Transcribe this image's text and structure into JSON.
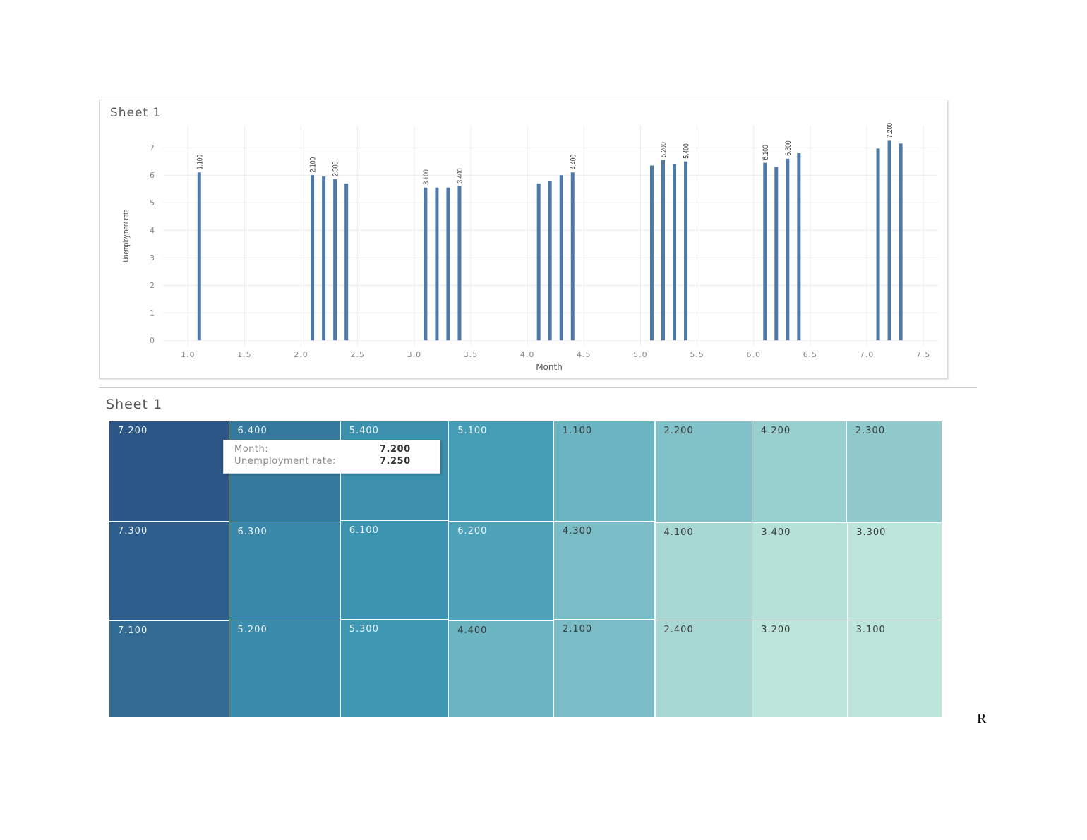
{
  "bar_chart": {
    "sheet_title": "Sheet 1"
  },
  "treemap": {
    "sheet_title": "Sheet 1",
    "tooltip": {
      "month_label": "Month:",
      "month_value": "7.200",
      "rate_label": "Unemployment rate:",
      "rate_value": "7.250"
    }
  },
  "stray_text": "R",
  "colors": {
    "bar": "#4e79a7",
    "treemap_dark": "#2c5685",
    "treemap_light": "#bde6da"
  },
  "chart_data": [
    {
      "type": "bar",
      "title": "Sheet 1",
      "xlabel": "Month",
      "ylabel": "Unemployment rate",
      "xlim": [
        0.78,
        7.63
      ],
      "ylim": [
        -0.2,
        7.8
      ],
      "xticks": [
        "1.0",
        "1.5",
        "2.0",
        "2.5",
        "3.0",
        "3.5",
        "4.0",
        "4.5",
        "5.0",
        "5.5",
        "6.0",
        "6.5",
        "7.0",
        "7.5"
      ],
      "yticks": [
        "0",
        "1",
        "2",
        "3",
        "4",
        "5",
        "6",
        "7"
      ],
      "grid": true,
      "x": [
        1.1,
        2.1,
        2.2,
        2.3,
        2.4,
        3.1,
        3.2,
        3.3,
        3.4,
        4.1,
        4.2,
        4.3,
        4.4,
        5.1,
        5.2,
        5.3,
        5.4,
        6.1,
        6.2,
        6.3,
        6.4,
        7.1,
        7.2,
        7.3
      ],
      "values": [
        6.1,
        6.0,
        5.95,
        5.85,
        5.7,
        5.55,
        5.55,
        5.55,
        5.6,
        5.7,
        5.8,
        6.0,
        6.1,
        6.35,
        6.55,
        6.4,
        6.5,
        6.45,
        6.3,
        6.6,
        6.8,
        6.97,
        7.25,
        7.15
      ],
      "data_labels": [
        {
          "x": 1.1,
          "text": "1.100"
        },
        {
          "x": 2.1,
          "text": "2.100"
        },
        {
          "x": 2.3,
          "text": "2.300"
        },
        {
          "x": 3.1,
          "text": "3.100"
        },
        {
          "x": 3.4,
          "text": "3.400"
        },
        {
          "x": 4.4,
          "text": "4.400"
        },
        {
          "x": 5.2,
          "text": "5.200"
        },
        {
          "x": 5.4,
          "text": "5.400"
        },
        {
          "x": 6.1,
          "text": "6.100"
        },
        {
          "x": 6.3,
          "text": "6.300"
        },
        {
          "x": 7.2,
          "text": "7.200"
        }
      ]
    },
    {
      "type": "treemap",
      "title": "Sheet 1",
      "cells": [
        {
          "label": "7.200",
          "value": 7.25,
          "highlighted": true
        },
        {
          "label": "7.300",
          "value": 7.15
        },
        {
          "label": "7.100",
          "value": 6.97
        },
        {
          "label": "6.400",
          "value": 6.8
        },
        {
          "label": "6.300",
          "value": 6.6
        },
        {
          "label": "5.200",
          "value": 6.55
        },
        {
          "label": "5.400",
          "value": 6.5
        },
        {
          "label": "6.100",
          "value": 6.45
        },
        {
          "label": "5.300",
          "value": 6.4
        },
        {
          "label": "5.100",
          "value": 6.35
        },
        {
          "label": "6.200",
          "value": 6.3
        },
        {
          "label": "4.400",
          "value": 6.1
        },
        {
          "label": "1.100",
          "value": 6.1
        },
        {
          "label": "4.300",
          "value": 6.0
        },
        {
          "label": "2.100",
          "value": 6.0
        },
        {
          "label": "2.200",
          "value": 5.95
        },
        {
          "label": "4.200",
          "value": 5.8
        },
        {
          "label": "2.300",
          "value": 5.85
        },
        {
          "label": "4.100",
          "value": 5.7
        },
        {
          "label": "2.400",
          "value": 5.7
        },
        {
          "label": "3.400",
          "value": 5.6
        },
        {
          "label": "3.300",
          "value": 5.55
        },
        {
          "label": "3.200",
          "value": 5.55
        },
        {
          "label": "3.100",
          "value": 5.55
        }
      ]
    }
  ]
}
